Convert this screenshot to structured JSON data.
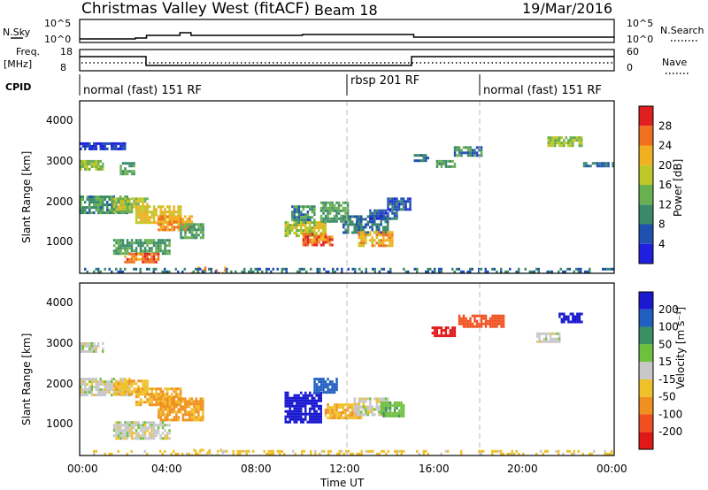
{
  "header": {
    "title": "Christmas Valley West (fitACF)",
    "beam": "Beam 18",
    "date": "19/Mar/2016"
  },
  "noise_panel": {
    "left_label": "N.Sky",
    "left_ticks": [
      "10^5",
      "10^0"
    ],
    "right_label": "N.Search",
    "right_ticks": [
      "10^5",
      "10^0"
    ]
  },
  "freq_panel": {
    "left_label_1": "Freq.",
    "left_label_2": "[MHz]",
    "left_ticks": [
      "18",
      "8"
    ],
    "right_label": "Nave",
    "right_ticks": [
      "60",
      "0"
    ]
  },
  "cpid_panel": {
    "label": "CPID",
    "modes": [
      {
        "name": "normal (fast) 151 RF",
        "start_hour": 0
      },
      {
        "name": "rbsp 201 RF",
        "start_hour": 12
      },
      {
        "name": "normal (fast) 151 RF",
        "start_hour": 18
      }
    ]
  },
  "power_panel": {
    "ylabel": "Slant Range [km]",
    "yticks": [
      "4000",
      "3000",
      "2000",
      "1000"
    ],
    "colorbar_label": "Power [dB]",
    "colorbar_ticks": [
      "28",
      "24",
      "20",
      "16",
      "12",
      "8",
      "4"
    ],
    "colors": [
      "#1f1fe0",
      "#2050b0",
      "#3a8a6a",
      "#68b050",
      "#c0c828",
      "#f0b020",
      "#f07020",
      "#e02020"
    ]
  },
  "velocity_panel": {
    "ylabel": "Slant Range [km]",
    "yticks": [
      "4000",
      "3000",
      "2000",
      "1000"
    ],
    "colorbar_label": "Velocity [m s⁻¹]",
    "colorbar_ticks": [
      "200",
      "100",
      "50",
      "15",
      "-15",
      "-50",
      "-100",
      "-200"
    ],
    "colors": [
      "#1a1ad0",
      "#2060c0",
      "#3a9060",
      "#70c040",
      "#c8c8c8",
      "#f0c028",
      "#f09020",
      "#f05020",
      "#e01818"
    ]
  },
  "x_axis": {
    "ticks": [
      "00:00",
      "04:00",
      "08:00",
      "12:00",
      "16:00",
      "20:00",
      "00:00"
    ],
    "label": "Time UT"
  },
  "chart_data": {
    "type": "heatmap",
    "x_range_hours": [
      0,
      24
    ],
    "y_range_km": [
      180,
      4550
    ],
    "gridlines_hours": [
      12,
      18
    ],
    "power_regions": [
      {
        "t": [
          0.0,
          2.2
        ],
        "r": [
          1700,
          2150
        ],
        "value_db": 13
      },
      {
        "t": [
          1.5,
          3.0
        ],
        "r": [
          1750,
          2100
        ],
        "value_db": 19
      },
      {
        "t": [
          2.5,
          4.5
        ],
        "r": [
          1450,
          1900
        ],
        "value_db": 22
      },
      {
        "t": [
          3.5,
          5.0
        ],
        "r": [
          1300,
          1650
        ],
        "value_db": 26
      },
      {
        "t": [
          4.5,
          5.5
        ],
        "r": [
          1050,
          1450
        ],
        "value_db": 14
      },
      {
        "t": [
          1.5,
          4.0
        ],
        "r": [
          700,
          1050
        ],
        "value_db": 14
      },
      {
        "t": [
          2.0,
          3.5
        ],
        "r": [
          450,
          700
        ],
        "value_db": 28
      },
      {
        "t": [
          5.0,
          6.5
        ],
        "r": [
          200,
          350
        ],
        "value_db": 28
      },
      {
        "t": [
          0.0,
          1.0
        ],
        "r": [
          2800,
          3050
        ],
        "value_db": 18
      },
      {
        "t": [
          1.8,
          2.4
        ],
        "r": [
          2700,
          3000
        ],
        "value_db": 14
      },
      {
        "t": [
          0.0,
          2.0
        ],
        "r": [
          3350,
          3500
        ],
        "value_db": 6
      },
      {
        "t": [
          9.5,
          10.5
        ],
        "r": [
          1450,
          1900
        ],
        "value_db": 12
      },
      {
        "t": [
          9.2,
          11.0
        ],
        "r": [
          1100,
          1500
        ],
        "value_db": 20
      },
      {
        "t": [
          10.0,
          11.3
        ],
        "r": [
          900,
          1200
        ],
        "value_db": 28
      },
      {
        "t": [
          10.8,
          12.0
        ],
        "r": [
          1500,
          2000
        ],
        "value_db": 14
      },
      {
        "t": [
          11.8,
          13.8
        ],
        "r": [
          1200,
          1650
        ],
        "value_db": 10
      },
      {
        "t": [
          12.5,
          14.0
        ],
        "r": [
          900,
          1250
        ],
        "value_db": 24
      },
      {
        "t": [
          13.0,
          14.2
        ],
        "r": [
          1550,
          1800
        ],
        "value_db": 8
      },
      {
        "t": [
          13.8,
          14.8
        ],
        "r": [
          1800,
          2100
        ],
        "value_db": 8
      },
      {
        "t": [
          15.0,
          15.6
        ],
        "r": [
          3000,
          3200
        ],
        "value_db": 10
      },
      {
        "t": [
          16.0,
          16.8
        ],
        "r": [
          2850,
          3050
        ],
        "value_db": 14
      },
      {
        "t": [
          16.8,
          18.0
        ],
        "r": [
          3150,
          3400
        ],
        "value_db": 12
      },
      {
        "t": [
          21.0,
          22.5
        ],
        "r": [
          3400,
          3650
        ],
        "value_db": 18
      },
      {
        "t": [
          22.6,
          24.0
        ],
        "r": [
          2900,
          3000
        ],
        "value_db": 10
      },
      {
        "t": [
          0.0,
          24.0
        ],
        "r": [
          180,
          320
        ],
        "value_db": 10
      }
    ],
    "velocity_regions": [
      {
        "t": [
          0.0,
          2.2
        ],
        "r": [
          1700,
          2150
        ],
        "value_ms": 0
      },
      {
        "t": [
          1.5,
          3.0
        ],
        "r": [
          1750,
          2100
        ],
        "value_ms": -40
      },
      {
        "t": [
          2.5,
          4.5
        ],
        "r": [
          1450,
          1900
        ],
        "value_ms": -50
      },
      {
        "t": [
          3.5,
          5.5
        ],
        "r": [
          1050,
          1650
        ],
        "value_ms": -60
      },
      {
        "t": [
          1.5,
          4.0
        ],
        "r": [
          600,
          1050
        ],
        "value_ms": 0
      },
      {
        "t": [
          0.0,
          1.0
        ],
        "r": [
          2800,
          3050
        ],
        "value_ms": 0
      },
      {
        "t": [
          5.0,
          6.5
        ],
        "r": [
          200,
          350
        ],
        "value_ms": -20
      },
      {
        "t": [
          9.2,
          10.8
        ],
        "r": [
          1000,
          1800
        ],
        "value_ms": 220
      },
      {
        "t": [
          10.5,
          11.5
        ],
        "r": [
          1800,
          2150
        ],
        "value_ms": 120
      },
      {
        "t": [
          11.0,
          12.6
        ],
        "r": [
          1100,
          1500
        ],
        "value_ms": -40
      },
      {
        "t": [
          12.3,
          13.8
        ],
        "r": [
          1200,
          1650
        ],
        "value_ms": 0
      },
      {
        "t": [
          13.5,
          14.5
        ],
        "r": [
          1200,
          1550
        ],
        "value_ms": 40
      },
      {
        "t": [
          15.8,
          16.8
        ],
        "r": [
          3200,
          3450
        ],
        "value_ms": -220
      },
      {
        "t": [
          17.0,
          19.0
        ],
        "r": [
          3450,
          3750
        ],
        "value_ms": -150
      },
      {
        "t": [
          20.5,
          21.5
        ],
        "r": [
          3050,
          3300
        ],
        "value_ms": 0
      },
      {
        "t": [
          21.5,
          22.5
        ],
        "r": [
          3550,
          3800
        ],
        "value_ms": 230
      },
      {
        "t": [
          0.0,
          24.0
        ],
        "r": [
          180,
          320
        ],
        "value_ms": -30
      }
    ]
  }
}
